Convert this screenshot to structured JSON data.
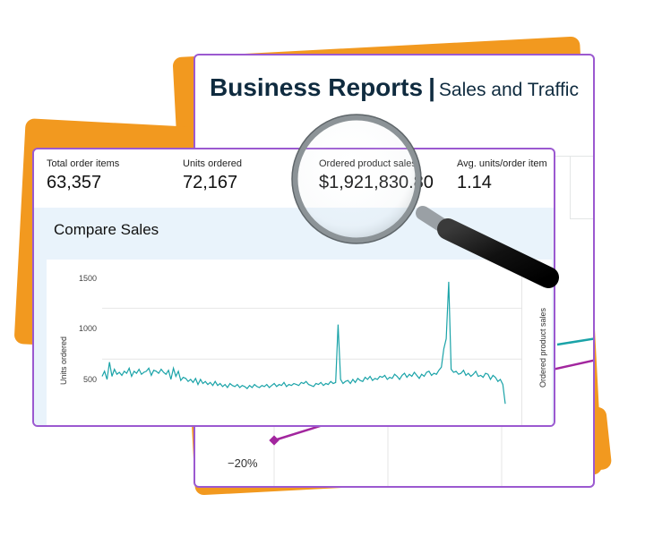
{
  "back_panel": {
    "title": "Business Reports",
    "separator": "|",
    "subtitle": "Sales and Traffic",
    "y_tick": "−20%"
  },
  "metrics": [
    {
      "label": "Total order items",
      "value": "63,357"
    },
    {
      "label": "Units ordered",
      "value": "72,167"
    },
    {
      "label": "Ordered product sales",
      "value": "$1,921,830.80"
    },
    {
      "label": "Avg. units/order item",
      "value": "1.14"
    }
  ],
  "compare_sales": {
    "title": "Compare Sales"
  },
  "chart_data": {
    "type": "line",
    "ylabel": "Units ordered",
    "ylabel_right": "Ordered product sales",
    "ylim": [
      0,
      1600
    ],
    "yticks": [
      "1500",
      "1000",
      "500"
    ],
    "grid": true,
    "series": [
      {
        "color": "#1aa3a8",
        "values": [
          330,
          380,
          300,
          470,
          330,
          400,
          350,
          370,
          340,
          380,
          360,
          410,
          330,
          380,
          360,
          400,
          350,
          370,
          380,
          410,
          340,
          390,
          380,
          360,
          400,
          370,
          350,
          390,
          300,
          410,
          330,
          380,
          290,
          320,
          310,
          280,
          300,
          270,
          310,
          250,
          300,
          260,
          280,
          250,
          270,
          240,
          280,
          240,
          260,
          230,
          250,
          220,
          260,
          240,
          230,
          250,
          220,
          240,
          230,
          210,
          240,
          220,
          250,
          230,
          220,
          240,
          230,
          250,
          220,
          240,
          260,
          230,
          250,
          240,
          270,
          230,
          250,
          240,
          260,
          250,
          240,
          270,
          260,
          280,
          250,
          240,
          230,
          260,
          250,
          270,
          240,
          260,
          250,
          280,
          260,
          270,
          840,
          300,
          260,
          280,
          290,
          260,
          300,
          270,
          310,
          290,
          280,
          320,
          300,
          330,
          290,
          310,
          300,
          330,
          320,
          340,
          300,
          320,
          310,
          350,
          330,
          300,
          340,
          360,
          320,
          350,
          330,
          370,
          340,
          310,
          350,
          330,
          370,
          380,
          340,
          360,
          350,
          390,
          420,
          600,
          700,
          1260,
          400,
          370,
          380,
          350,
          360,
          390,
          340,
          360,
          330,
          350,
          380,
          330,
          340,
          320,
          360,
          350,
          300,
          340,
          320,
          280,
          300,
          250,
          60
        ]
      }
    ]
  },
  "icons": {
    "magnifier": "magnifying-glass-icon"
  },
  "colors": {
    "accent_purple": "#9b59d0",
    "orange": "#f2991f",
    "teal": "#1aa3a8",
    "magenta": "#a2269e"
  }
}
